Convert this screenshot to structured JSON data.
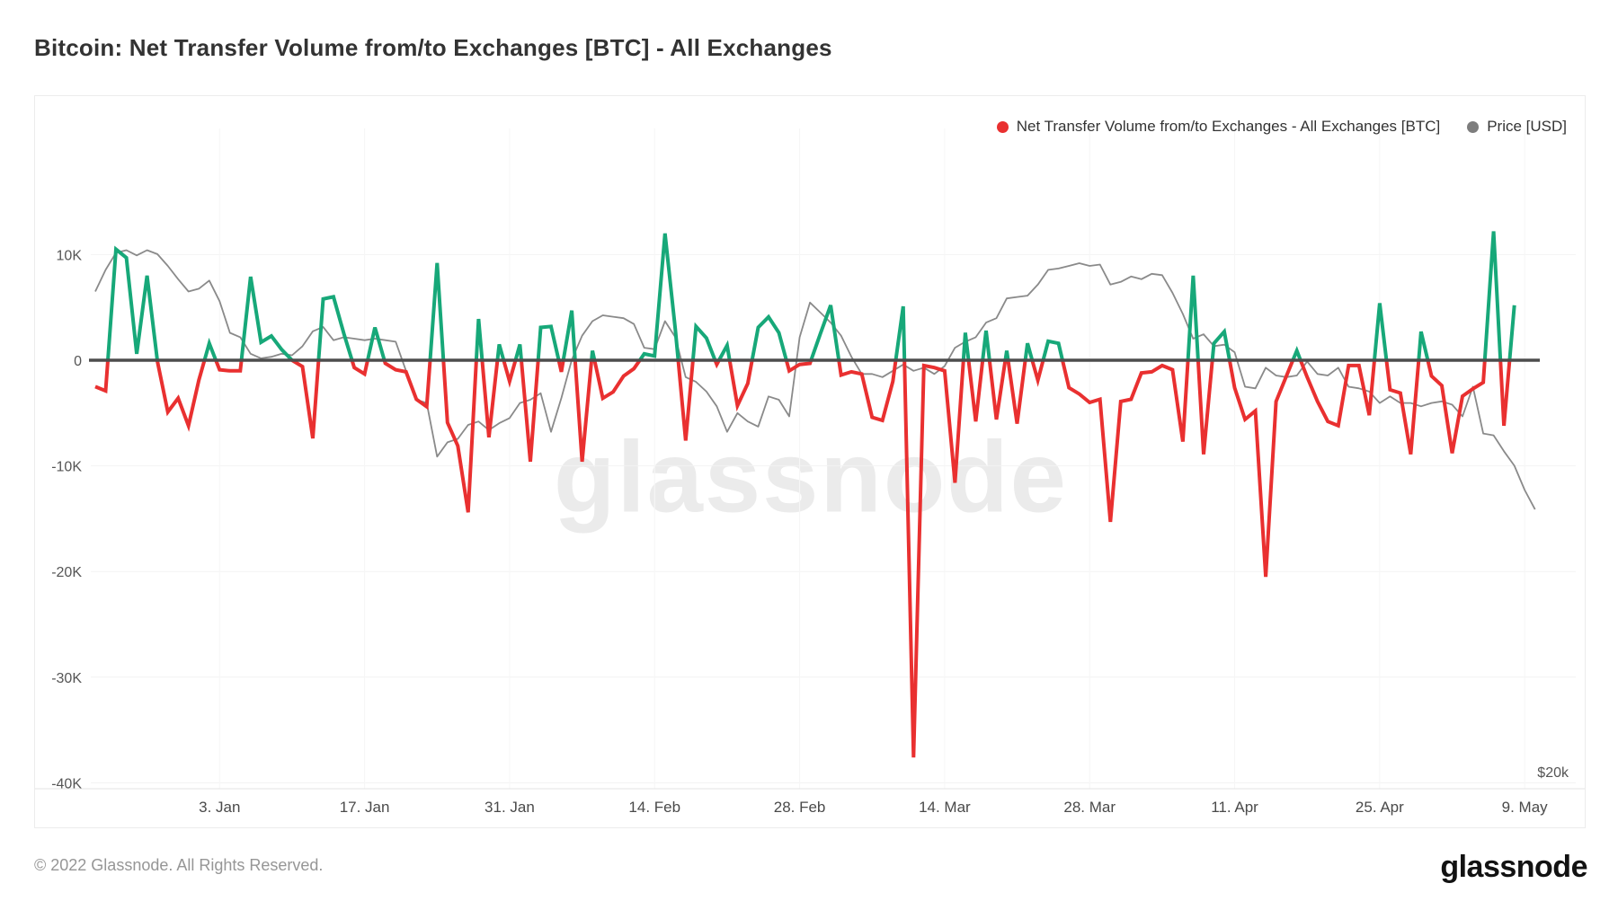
{
  "title": "Bitcoin: Net Transfer Volume from/to Exchanges [BTC] - All Exchanges",
  "watermark": "glassnode",
  "footer": {
    "copyright": "© 2022 Glassnode. All Rights Reserved.",
    "logo": "glassnode"
  },
  "colors": {
    "volume_positive": "#17a879",
    "volume_negative": "#e93030",
    "price_line": "#8a8a8a",
    "zero_line": "#4d4d4d",
    "grid_line": "#f3f3f3",
    "axis_line": "#e3e3e3"
  },
  "chart_data": {
    "type": "line",
    "start_date": "2021-12-22",
    "x_axis": {
      "ticks": [
        {
          "label": "3. Jan",
          "day": 12
        },
        {
          "label": "17. Jan",
          "day": 26
        },
        {
          "label": "31. Jan",
          "day": 40
        },
        {
          "label": "14. Feb",
          "day": 54
        },
        {
          "label": "28. Feb",
          "day": 68
        },
        {
          "label": "14. Mar",
          "day": 82
        },
        {
          "label": "28. Mar",
          "day": 96
        },
        {
          "label": "11. Apr",
          "day": 110
        },
        {
          "label": "25. Apr",
          "day": 124
        },
        {
          "label": "9. May",
          "day": 138
        }
      ]
    },
    "y_axis_left": {
      "unit": "BTC",
      "ylim": [
        -40000,
        13000
      ],
      "ticks": [
        {
          "label": "10K",
          "value": 10
        },
        {
          "label": "0",
          "value": 0
        },
        {
          "label": "-10K",
          "value": -10
        },
        {
          "label": "-20K",
          "value": -20
        },
        {
          "label": "-30K",
          "value": -30
        },
        {
          "label": "-40K",
          "value": -40
        }
      ]
    },
    "y_axis_right": {
      "unit": "USD",
      "scale": "log",
      "tick_label": "$20k",
      "tick_value_usd": 20000
    },
    "series": [
      {
        "name": "Net Transfer Volume from/to Exchanges - All Exchanges [BTC]",
        "legend_color": "#e93030",
        "color_positive": "#17a879",
        "color_negative": "#e93030",
        "axis": "left",
        "units": "thousand BTC per day",
        "start_date": "2021-12-22",
        "end_date": "2022-05-08",
        "values": [
          -2.5,
          -2.9,
          10.5,
          9.7,
          0.6,
          8.0,
          -0.1,
          -4.9,
          -3.6,
          -6.2,
          -1.9,
          1.6,
          -0.9,
          -1.0,
          -1.0,
          7.9,
          1.7,
          2.3,
          1.0,
          0.0,
          -0.6,
          -7.4,
          5.8,
          6.0,
          2.5,
          -0.7,
          -1.3,
          3.1,
          -0.3,
          -0.9,
          -1.1,
          -3.7,
          -4.4,
          9.2,
          -5.9,
          -8.1,
          -14.4,
          3.9,
          -7.3,
          1.5,
          -2.0,
          1.5,
          -9.6,
          3.1,
          3.2,
          -1.1,
          4.7,
          -9.6,
          0.9,
          -3.6,
          -3.0,
          -1.5,
          -0.8,
          0.6,
          0.4,
          12.0,
          2.9,
          -7.6,
          3.2,
          2.1,
          -0.4,
          1.4,
          -4.3,
          -2.2,
          3.1,
          4.1,
          2.6,
          -1.0,
          -0.4,
          -0.3,
          2.5,
          5.2,
          -1.4,
          -1.1,
          -1.3,
          -5.4,
          -5.7,
          -2.0,
          5.1,
          -37.6,
          -0.5,
          -0.7,
          -1.0,
          -11.6,
          2.6,
          -5.8,
          2.8,
          -5.6,
          0.9,
          -6.0,
          1.6,
          -1.9,
          1.8,
          1.6,
          -2.6,
          -3.2,
          -4.0,
          -3.7,
          -15.3,
          -3.9,
          -3.7,
          -1.2,
          -1.1,
          -0.5,
          -0.9,
          -7.7,
          8.0,
          -8.9,
          1.6,
          2.7,
          -2.6,
          -5.6,
          -4.8,
          -20.5,
          -3.9,
          -1.5,
          0.9,
          -1.6,
          -3.9,
          -5.8,
          -6.2,
          -0.5,
          -0.5,
          -5.2,
          5.4,
          -2.8,
          -3.1,
          -8.9,
          2.7,
          -1.5,
          -2.4,
          -8.8,
          -3.4,
          -2.7,
          -2.1,
          12.2,
          -6.2,
          5.2
        ]
      },
      {
        "name": "Price [USD]",
        "legend_color": "#7d7d7d",
        "color": "#8a8a8a",
        "axis": "right",
        "units": "thousand USD",
        "start_date": "2021-12-22",
        "end_date": "2022-05-10",
        "values": [
          44.1,
          45.7,
          47.0,
          47.2,
          46.8,
          47.2,
          46.9,
          46.0,
          45.0,
          44.1,
          44.3,
          44.9,
          43.4,
          41.2,
          40.9,
          39.8,
          39.5,
          39.6,
          39.8,
          39.7,
          40.3,
          41.3,
          41.6,
          40.7,
          40.9,
          40.8,
          40.7,
          40.8,
          40.7,
          40.6,
          38.7,
          36.9,
          36.7,
          33.6,
          34.4,
          34.6,
          35.4,
          35.6,
          35.1,
          35.5,
          35.8,
          36.7,
          36.9,
          37.3,
          35.0,
          37.0,
          39.4,
          41.0,
          42.0,
          42.4,
          42.3,
          42.2,
          41.8,
          40.2,
          40.1,
          42.0,
          40.9,
          38.3,
          38.0,
          37.4,
          36.5,
          35.0,
          36.1,
          35.6,
          35.3,
          37.1,
          36.9,
          35.9,
          40.9,
          43.3,
          42.6,
          41.9,
          41.0,
          39.6,
          38.5,
          38.5,
          38.3,
          38.7,
          39.1,
          38.7,
          38.9,
          38.5,
          39.0,
          40.2,
          40.6,
          40.9,
          41.9,
          42.2,
          43.6,
          43.7,
          43.8,
          44.6,
          45.7,
          45.8,
          46.0,
          46.2,
          46.0,
          46.1,
          44.6,
          44.8,
          45.2,
          45.0,
          45.4,
          45.3,
          44.0,
          42.5,
          40.8,
          41.1,
          40.3,
          40.4,
          39.9,
          37.7,
          37.6,
          38.9,
          38.4,
          38.3,
          38.4,
          39.3,
          38.5,
          38.4,
          38.9,
          37.7,
          37.6,
          37.4,
          36.7,
          37.1,
          36.7,
          36.7,
          36.5,
          36.7,
          36.8,
          36.6,
          35.9,
          37.7,
          34.9,
          34.8,
          33.9,
          33.1,
          31.8,
          30.8
        ]
      }
    ]
  }
}
